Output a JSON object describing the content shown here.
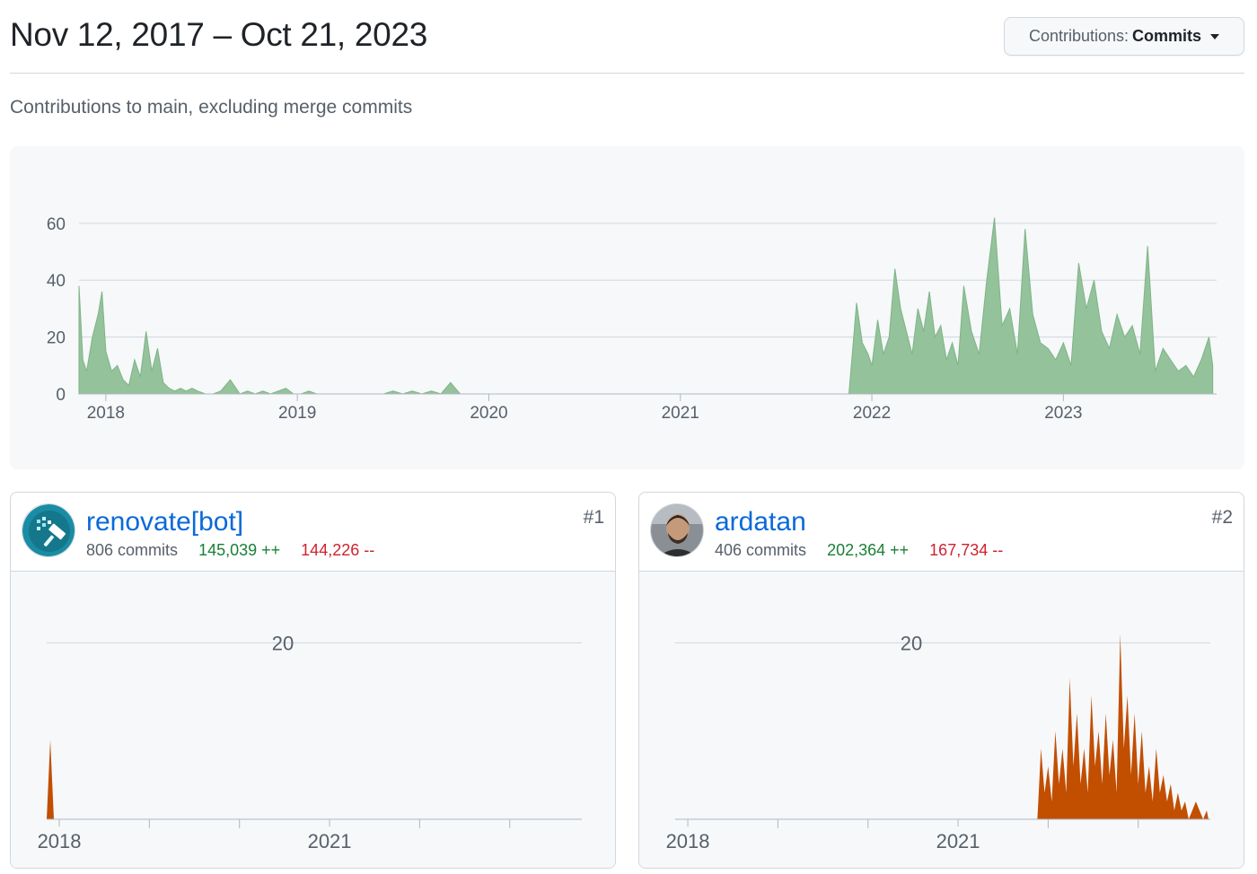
{
  "header": {
    "date_range": "Nov 12, 2017 – Oct 21, 2023",
    "filter_label": "Contributions:",
    "filter_value": "Commits"
  },
  "subtitle": "Contributions to main, excluding merge commits",
  "colors": {
    "main_fill": "#94c29b",
    "main_stroke": "#7fb486",
    "contrib_fill": "#c24e00"
  },
  "chart_data": [
    {
      "type": "area",
      "title": "",
      "xlabel": "",
      "ylabel": "",
      "ylim": [
        0,
        65
      ],
      "yticks": [
        0,
        20,
        40,
        60
      ],
      "xlim": [
        2017.86,
        2023.8
      ],
      "xticks": [
        2018,
        2019,
        2020,
        2021,
        2022,
        2023
      ],
      "grid": true,
      "series": [
        {
          "x": [
            2017.86,
            2017.88,
            2017.9,
            2017.93,
            2017.96,
            2017.98,
            2018.0,
            2018.03,
            2018.06,
            2018.09,
            2018.12,
            2018.15,
            2018.18,
            2018.21,
            2018.24,
            2018.27,
            2018.3,
            2018.33,
            2018.36,
            2018.39,
            2018.42,
            2018.45,
            2018.48,
            2018.52,
            2018.56,
            2018.6,
            2018.65,
            2018.7,
            2018.74,
            2018.78,
            2018.82,
            2018.86,
            2018.9,
            2018.94,
            2018.98,
            2019.02,
            2019.06,
            2019.1,
            2019.15,
            2019.2,
            2019.3,
            2019.4,
            2019.45,
            2019.5,
            2019.55,
            2019.6,
            2019.65,
            2019.7,
            2019.75,
            2019.8,
            2019.85,
            2019.9,
            2020.0,
            2020.5,
            2021.0,
            2021.5,
            2021.88,
            2021.92,
            2021.95,
            2021.98,
            2022.0,
            2022.03,
            2022.06,
            2022.09,
            2022.12,
            2022.15,
            2022.18,
            2022.21,
            2022.24,
            2022.27,
            2022.3,
            2022.33,
            2022.36,
            2022.39,
            2022.42,
            2022.45,
            2022.48,
            2022.52,
            2022.56,
            2022.6,
            2022.64,
            2022.68,
            2022.72,
            2022.76,
            2022.8,
            2022.84,
            2022.88,
            2022.92,
            2022.96,
            2023.0,
            2023.04,
            2023.08,
            2023.12,
            2023.16,
            2023.2,
            2023.24,
            2023.28,
            2023.32,
            2023.36,
            2023.4,
            2023.44,
            2023.48,
            2023.52,
            2023.56,
            2023.6,
            2023.64,
            2023.68,
            2023.72,
            2023.76,
            2023.78
          ],
          "values": [
            38,
            12,
            8,
            20,
            28,
            36,
            15,
            8,
            10,
            5,
            3,
            12,
            6,
            22,
            8,
            16,
            4,
            2,
            1,
            2,
            1,
            2,
            1,
            0,
            0,
            1,
            5,
            0,
            1,
            0,
            1,
            0,
            1,
            2,
            0,
            0,
            1,
            0,
            0,
            0,
            0,
            0,
            0,
            1,
            0,
            1,
            0,
            1,
            0,
            4,
            0,
            0,
            0,
            0,
            0,
            0,
            0,
            32,
            18,
            14,
            10,
            26,
            14,
            20,
            44,
            30,
            22,
            14,
            30,
            22,
            36,
            20,
            24,
            12,
            18,
            10,
            38,
            22,
            14,
            40,
            62,
            24,
            30,
            14,
            58,
            28,
            18,
            16,
            12,
            18,
            10,
            46,
            30,
            40,
            22,
            16,
            28,
            20,
            24,
            14,
            52,
            8,
            16,
            12,
            8,
            10,
            6,
            12,
            20,
            10
          ]
        }
      ]
    },
    {
      "type": "area",
      "title": "",
      "ylim": [
        0,
        24
      ],
      "yticks": [
        20
      ],
      "xlim": [
        2017.86,
        2023.8
      ],
      "xticks": [
        2018,
        2021
      ],
      "minor_ticks": [
        2019,
        2020,
        2022,
        2023
      ],
      "grid": true,
      "series": [
        {
          "x": [
            2017.86,
            2017.9,
            2017.94,
            2017.98,
            2018.0,
            2018.02,
            2018.05,
            2018.1,
            2018.15,
            2018.2,
            2018.25,
            2018.3,
            2018.35,
            2018.4,
            2018.5,
            2019.0,
            2020.0,
            2021.0,
            2021.6,
            2021.9,
            2021.93,
            2021.96,
            2022.0,
            2022.04,
            2022.08,
            2022.12,
            2022.16,
            2022.2,
            2022.24,
            2022.28,
            2022.32,
            2022.36,
            2022.4,
            2022.44,
            2022.48,
            2022.52,
            2022.56,
            2022.6,
            2022.64,
            2022.68,
            2022.72,
            2022.76,
            2022.8,
            2022.84,
            2022.88,
            2022.92,
            2022.96,
            2023.0,
            2023.04,
            2023.08,
            2023.12,
            2023.16,
            2023.2,
            2023.24,
            2023.28,
            2023.32,
            2023.36,
            2023.4,
            2023.44,
            2023.48,
            2023.52,
            2023.56,
            2023.6,
            2023.64,
            2023.68,
            2023.72,
            2023.76,
            2023.78
          ],
          "values": [
            0,
            9,
            0,
            0,
            0,
            0,
            0,
            0,
            0,
            0,
            0,
            0,
            0,
            0,
            0,
            0,
            0,
            0,
            0,
            0,
            0,
            0,
            0,
            0,
            0,
            0,
            0,
            0,
            0,
            0,
            0,
            0,
            0,
            0,
            0,
            0,
            0,
            0,
            0,
            0,
            0,
            0,
            0,
            0,
            0,
            0,
            0,
            0,
            0,
            0,
            0,
            0,
            0,
            0,
            0,
            0,
            0,
            0,
            0,
            0,
            0,
            0,
            0,
            0,
            0,
            0,
            0,
            0
          ]
        }
      ]
    },
    {
      "type": "area",
      "title": "",
      "ylim": [
        0,
        24
      ],
      "yticks": [
        20
      ],
      "xlim": [
        2017.86,
        2023.8
      ],
      "xticks": [
        2018,
        2021
      ],
      "minor_ticks": [
        2019,
        2020,
        2022,
        2023
      ],
      "grid": true,
      "series": [
        {
          "x": [
            2021.88,
            2021.92,
            2021.96,
            2022.0,
            2022.04,
            2022.08,
            2022.12,
            2022.16,
            2022.2,
            2022.24,
            2022.28,
            2022.32,
            2022.36,
            2022.4,
            2022.44,
            2022.48,
            2022.52,
            2022.56,
            2022.6,
            2022.64,
            2022.68,
            2022.72,
            2022.76,
            2022.8,
            2022.84,
            2022.88,
            2022.92,
            2022.96,
            2023.0,
            2023.04,
            2023.08,
            2023.12,
            2023.16,
            2023.2,
            2023.24,
            2023.28,
            2023.32,
            2023.36,
            2023.4,
            2023.44,
            2023.48,
            2023.52,
            2023.56,
            2023.6,
            2023.64,
            2023.68,
            2023.72,
            2023.76,
            2023.78
          ],
          "values": [
            0,
            8,
            3,
            6,
            2,
            10,
            4,
            8,
            3,
            16,
            6,
            12,
            4,
            8,
            3,
            14,
            6,
            10,
            4,
            12,
            5,
            9,
            3,
            21,
            8,
            14,
            5,
            12,
            4,
            10,
            3,
            6,
            2,
            8,
            3,
            5,
            2,
            4,
            1,
            3,
            1,
            2,
            0,
            1,
            2,
            1,
            0,
            1,
            0
          ]
        }
      ]
    }
  ],
  "contributors": [
    {
      "login": "renovate[bot]",
      "commits": "806 commits",
      "additions": "145,039 ++",
      "deletions": "144,226 --",
      "rank": "#1",
      "avatar_icon": "renovate-logo-icon"
    },
    {
      "login": "ardatan",
      "commits": "406 commits",
      "additions": "202,364 ++",
      "deletions": "167,734 --",
      "rank": "#2",
      "avatar_icon": "person-photo-icon"
    }
  ]
}
